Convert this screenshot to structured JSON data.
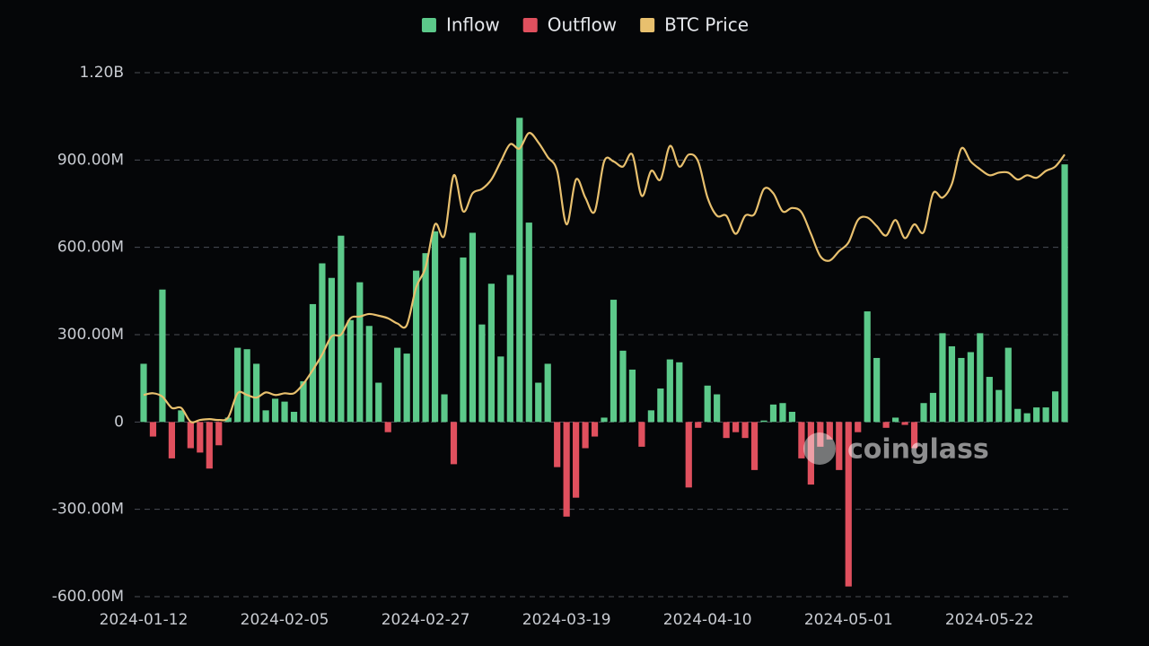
{
  "chart_data": {
    "type": "bar",
    "categories": [
      "2024-01-12",
      null,
      null,
      null,
      null,
      null,
      null,
      null,
      null,
      null,
      null,
      null,
      null,
      null,
      null,
      "2024-02-05",
      null,
      null,
      null,
      null,
      null,
      null,
      null,
      null,
      null,
      null,
      null,
      null,
      null,
      null,
      "2024-02-27",
      null,
      null,
      null,
      null,
      null,
      null,
      null,
      null,
      null,
      null,
      null,
      null,
      null,
      null,
      "2024-03-19",
      null,
      null,
      null,
      null,
      null,
      null,
      null,
      null,
      null,
      null,
      null,
      null,
      null,
      null,
      "2024-04-10",
      null,
      null,
      null,
      null,
      null,
      null,
      null,
      null,
      null,
      null,
      null,
      null,
      null,
      null,
      "2024-05-01",
      null,
      null,
      null,
      null,
      null,
      null,
      null,
      null,
      null,
      null,
      null,
      null,
      null,
      null,
      "2024-05-22",
      null,
      null,
      null,
      null,
      null,
      null,
      null,
      null
    ],
    "series": [
      {
        "name": "Inflow",
        "color": "#5cc98a",
        "values": [
          200000000,
          null,
          455000000,
          null,
          40000000,
          null,
          null,
          null,
          null,
          15000000,
          255000000,
          250000000,
          200000000,
          40000000,
          80000000,
          70000000,
          35000000,
          140000000,
          405000000,
          545000000,
          495000000,
          640000000,
          350000000,
          480000000,
          330000000,
          135000000,
          null,
          255000000,
          235000000,
          520000000,
          580000000,
          655000000,
          95000000,
          null,
          565000000,
          650000000,
          335000000,
          475000000,
          225000000,
          505000000,
          1045000000,
          685000000,
          135000000,
          200000000,
          null,
          null,
          null,
          null,
          null,
          15000000,
          420000000,
          245000000,
          180000000,
          null,
          40000000,
          115000000,
          215000000,
          205000000,
          null,
          null,
          125000000,
          95000000,
          null,
          null,
          null,
          null,
          5000000,
          60000000,
          65000000,
          35000000,
          null,
          null,
          null,
          null,
          null,
          null,
          null,
          380000000,
          220000000,
          null,
          15000000,
          null,
          null,
          65000000,
          100000000,
          305000000,
          260000000,
          220000000,
          240000000,
          305000000,
          155000000,
          110000000,
          255000000,
          45000000,
          30000000,
          50000000,
          50000000,
          105000000,
          885000000
        ]
      },
      {
        "name": "Outflow",
        "color": "#e0505e",
        "values": [
          null,
          -50000000,
          null,
          -125000000,
          null,
          -90000000,
          -105000000,
          -160000000,
          -80000000,
          null,
          null,
          null,
          null,
          null,
          null,
          null,
          null,
          null,
          null,
          null,
          null,
          null,
          null,
          null,
          null,
          null,
          -35000000,
          null,
          null,
          null,
          null,
          null,
          null,
          -145000000,
          null,
          null,
          null,
          null,
          null,
          null,
          null,
          null,
          null,
          null,
          -155000000,
          -325000000,
          -260000000,
          -90000000,
          -50000000,
          null,
          null,
          null,
          null,
          -85000000,
          null,
          null,
          null,
          null,
          -225000000,
          -20000000,
          null,
          null,
          -55000000,
          -35000000,
          -55000000,
          -165000000,
          null,
          null,
          null,
          null,
          -125000000,
          -215000000,
          -85000000,
          -60000000,
          -165000000,
          -565000000,
          -35000000,
          null,
          null,
          -20000000,
          null,
          -10000000,
          -90000000,
          null,
          null,
          null,
          null,
          null,
          null,
          null,
          null,
          null,
          null,
          null,
          null,
          null,
          null,
          null,
          null
        ]
      },
      {
        "name": "BTC Price",
        "color": "#e8c06e",
        "type": "line",
        "axis": "y2",
        "values": [
          42600,
          42800,
          42400,
          41100,
          41100,
          39500,
          39700,
          39800,
          39700,
          40000,
          42800,
          42600,
          42300,
          42900,
          42600,
          42800,
          42800,
          43900,
          45500,
          47300,
          49400,
          49600,
          51500,
          51700,
          52000,
          51800,
          51500,
          50900,
          50700,
          55100,
          57400,
          62400,
          61100,
          68100,
          63900,
          66000,
          66500,
          67600,
          69700,
          71700,
          71200,
          73000,
          71900,
          70200,
          68600,
          62400,
          67600,
          65500,
          63900,
          69700,
          69700,
          69100,
          70500,
          65700,
          68600,
          67600,
          71500,
          69100,
          70500,
          69700,
          65500,
          63400,
          63400,
          61300,
          63400,
          63600,
          66500,
          66000,
          63900,
          64300,
          63800,
          61300,
          58700,
          58200,
          59300,
          60300,
          62900,
          63200,
          62200,
          61100,
          62900,
          60800,
          62400,
          61500,
          66000,
          65500,
          67100,
          71200,
          69700,
          68800,
          68100,
          68400,
          68400,
          67600,
          68100,
          67800,
          68600,
          69100,
          70500
        ]
      }
    ],
    "ylim": [
      -600000000,
      1200000000
    ],
    "yticks": [
      {
        "value": -600000000,
        "label": "-600.00M"
      },
      {
        "value": -300000000,
        "label": "-300.00M"
      },
      0,
      {
        "value": 300000000,
        "label": "300.00M"
      },
      {
        "value": 600000000,
        "label": "600.00M"
      },
      {
        "value": 900000000,
        "label": "900.00M"
      },
      {
        "value": 1200000000,
        "label": "1.20B"
      }
    ],
    "y2lim": [
      19200,
      80000
    ],
    "grid": true,
    "legend": "top",
    "watermark": "coinglass"
  }
}
